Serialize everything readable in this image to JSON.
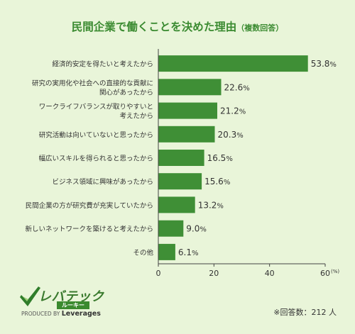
{
  "title": "民間企業で働くことを決めた理由",
  "title_note": "（複数回答）",
  "chart_data": {
    "type": "bar",
    "orientation": "horizontal",
    "categories": [
      [
        "経済的安定を得たいと考えたから"
      ],
      [
        "研究の実用化や社会への直接的な貢献に",
        "関心があったから"
      ],
      [
        "ワークライフバランスが取りやすいと",
        "考えたから"
      ],
      [
        "研究活動は向いていないと思ったから"
      ],
      [
        "幅広いスキルを得られると思ったから"
      ],
      [
        "ビジネス領域に興味があったから"
      ],
      [
        "民間企業の方が研究費が充実していたから"
      ],
      [
        "新しいネットワークを築けると考えたから"
      ],
      [
        "その他"
      ]
    ],
    "values": [
      53.8,
      22.6,
      21.2,
      20.3,
      16.5,
      15.6,
      13.2,
      9.0,
      6.1
    ],
    "value_labels": [
      "53.8",
      "22.6",
      "21.2",
      "20.3",
      "16.5",
      "15.6",
      "13.2",
      "9.0",
      "6.1"
    ],
    "unit": "%",
    "xlim": [
      0,
      60
    ],
    "x_ticks": [
      0,
      20,
      40,
      60
    ],
    "x_unit": "(%)",
    "grid": false,
    "colors": {
      "bar": "#3f8f36",
      "axis": "#444444"
    }
  },
  "logo": {
    "brand": "レバテック",
    "sub": "ルーキー",
    "produced_by": "PRODUCED BY",
    "company": "Leverages"
  },
  "respondents": "※回答数：212 人"
}
